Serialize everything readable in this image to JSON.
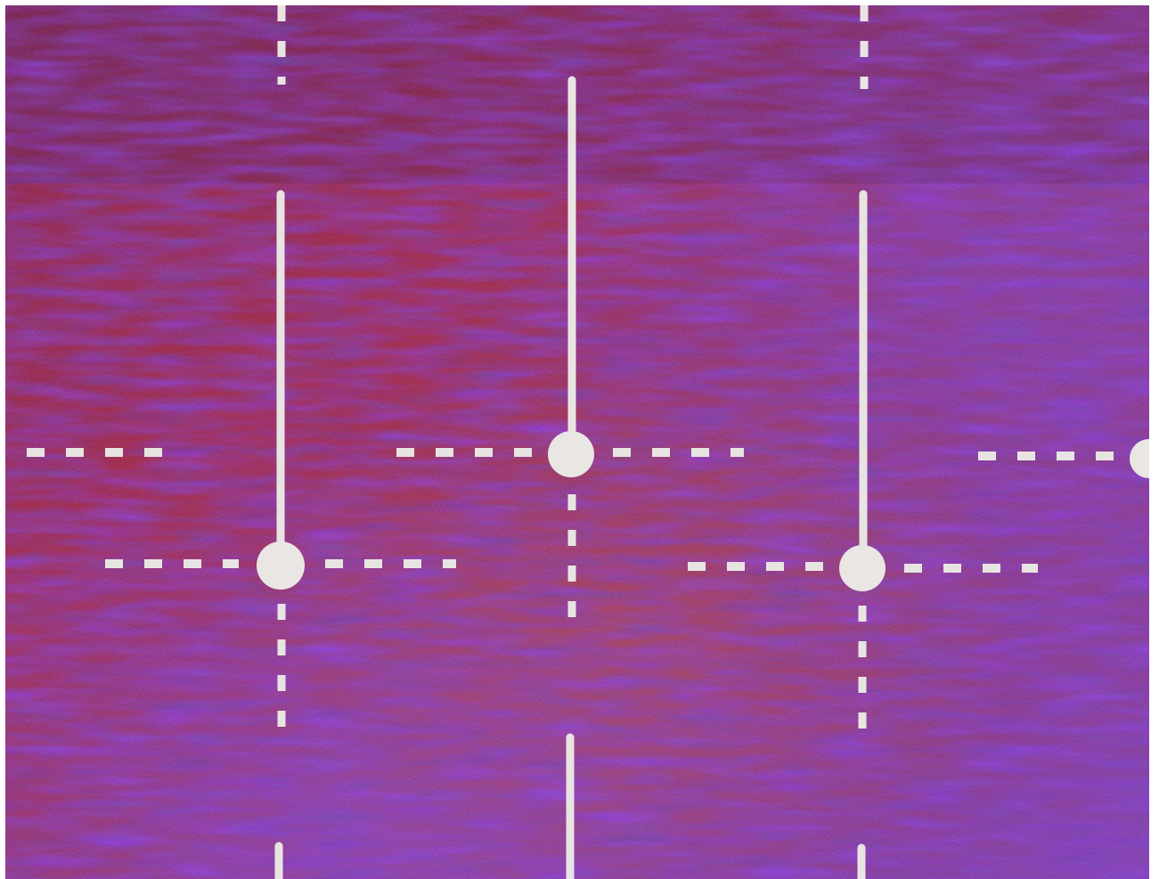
{
  "image": {
    "description_hidden": "",
    "colors": {
      "frame_border": "#ffffff",
      "background_base": "#8b1a1a",
      "background_dark": "#2a0f3a",
      "background_red": "#b0201a",
      "background_violet": "#6a3ab0",
      "background_orange": "#b8501a",
      "line_color": "#e8e4e2",
      "dot_color": "#e9e6e4"
    },
    "features": [
      {
        "id": "solid-line-1",
        "kind": "solid-vertical-line"
      },
      {
        "id": "solid-line-2",
        "kind": "solid-vertical-line"
      },
      {
        "id": "solid-line-3",
        "kind": "solid-vertical-line"
      },
      {
        "id": "node-1",
        "kind": "round-node"
      },
      {
        "id": "node-2",
        "kind": "round-node"
      },
      {
        "id": "node-3",
        "kind": "round-node"
      },
      {
        "id": "node-4",
        "kind": "round-node"
      }
    ]
  }
}
